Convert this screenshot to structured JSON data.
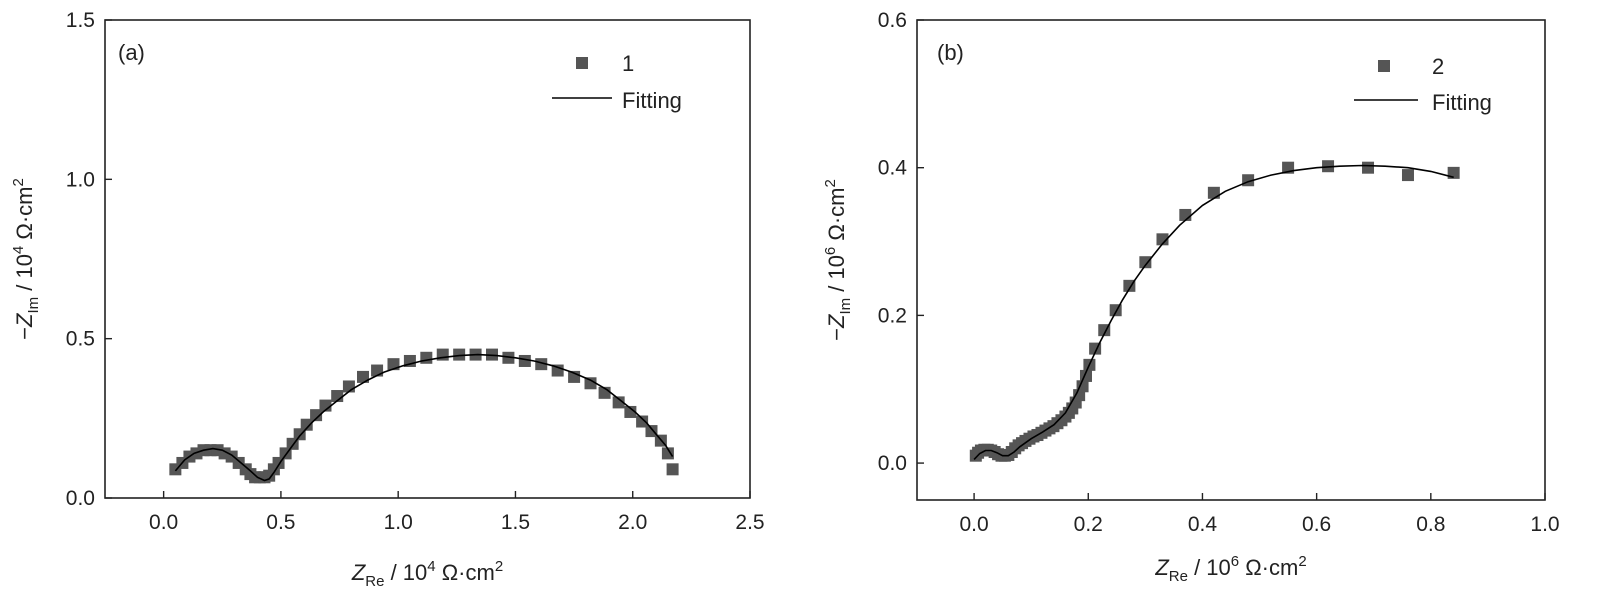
{
  "chart_data": [
    {
      "type": "scatter",
      "panel_label": "(a)",
      "xlabel": {
        "symbol": "Z",
        "subscript": "Re",
        "unit_prefix": " / 10",
        "exponent": "4",
        "unit": " Ω·cm",
        "unit_exponent": "2"
      },
      "ylabel": {
        "prefix": "−",
        "symbol": "Z",
        "subscript": "Im",
        "unit_prefix": " / 10",
        "exponent": "4",
        "unit": " Ω·cm",
        "unit_exponent": "2"
      },
      "xlim": [
        -0.25,
        2.5
      ],
      "ylim": [
        0.0,
        1.5
      ],
      "xticks": [
        0.0,
        0.5,
        1.0,
        1.5,
        2.0,
        2.5
      ],
      "xtick_labels": [
        "0.0",
        "0.5",
        "1.0",
        "1.5",
        "2.0",
        "2.5"
      ],
      "yticks": [
        0.0,
        0.5,
        1.0,
        1.5
      ],
      "ytick_labels": [
        "0.0",
        "0.5",
        "1.0",
        "1.5"
      ],
      "legend_position": "top-right",
      "series": [
        {
          "name": "1",
          "kind": "markers",
          "color": "#555555",
          "x": [
            0.05,
            0.08,
            0.11,
            0.14,
            0.17,
            0.2,
            0.23,
            0.26,
            0.29,
            0.32,
            0.35,
            0.37,
            0.39,
            0.41,
            0.43,
            0.45,
            0.47,
            0.49,
            0.52,
            0.55,
            0.58,
            0.61,
            0.65,
            0.69,
            0.74,
            0.79,
            0.85,
            0.91,
            0.98,
            1.05,
            1.12,
            1.19,
            1.26,
            1.33,
            1.4,
            1.47,
            1.54,
            1.61,
            1.68,
            1.75,
            1.82,
            1.88,
            1.94,
            1.99,
            2.04,
            2.08,
            2.12,
            2.15,
            2.17
          ],
          "y": [
            0.09,
            0.11,
            0.13,
            0.14,
            0.15,
            0.15,
            0.15,
            0.14,
            0.13,
            0.11,
            0.09,
            0.075,
            0.065,
            0.065,
            0.065,
            0.07,
            0.09,
            0.11,
            0.14,
            0.17,
            0.2,
            0.23,
            0.26,
            0.29,
            0.32,
            0.35,
            0.38,
            0.4,
            0.42,
            0.43,
            0.44,
            0.45,
            0.45,
            0.45,
            0.45,
            0.44,
            0.43,
            0.42,
            0.4,
            0.38,
            0.36,
            0.33,
            0.3,
            0.27,
            0.24,
            0.21,
            0.18,
            0.14,
            0.09
          ]
        },
        {
          "name": "Fitting",
          "kind": "line",
          "color": "#000000",
          "x": [
            0.05,
            0.09,
            0.13,
            0.17,
            0.21,
            0.25,
            0.29,
            0.33,
            0.37,
            0.4,
            0.43,
            0.45,
            0.47,
            0.5,
            0.54,
            0.58,
            0.63,
            0.68,
            0.74,
            0.8,
            0.87,
            0.94,
            1.02,
            1.1,
            1.18,
            1.26,
            1.34,
            1.42,
            1.5,
            1.58,
            1.66,
            1.74,
            1.82,
            1.89,
            1.95,
            2.01,
            2.06,
            2.1,
            2.14,
            2.17
          ],
          "y": [
            0.085,
            0.12,
            0.14,
            0.15,
            0.155,
            0.15,
            0.135,
            0.11,
            0.085,
            0.065,
            0.055,
            0.06,
            0.08,
            0.115,
            0.155,
            0.195,
            0.235,
            0.27,
            0.305,
            0.34,
            0.37,
            0.395,
            0.415,
            0.43,
            0.44,
            0.447,
            0.45,
            0.447,
            0.44,
            0.43,
            0.415,
            0.395,
            0.37,
            0.34,
            0.305,
            0.27,
            0.235,
            0.2,
            0.165,
            0.13
          ]
        }
      ]
    },
    {
      "type": "scatter",
      "panel_label": "(b)",
      "xlabel": {
        "symbol": "Z",
        "subscript": "Re",
        "unit_prefix": " / 10",
        "exponent": "6",
        "unit": " Ω·cm",
        "unit_exponent": "2"
      },
      "ylabel": {
        "prefix": "−",
        "symbol": "Z",
        "subscript": "Im",
        "unit_prefix": " / 10",
        "exponent": "6",
        "unit": " Ω·cm",
        "unit_exponent": "2"
      },
      "xlim": [
        -0.1,
        1.0
      ],
      "ylim": [
        -0.05,
        0.6
      ],
      "xticks": [
        0.0,
        0.2,
        0.4,
        0.6,
        0.8,
        1.0
      ],
      "xtick_labels": [
        "0.0",
        "0.2",
        "0.4",
        "0.6",
        "0.8",
        "1.0"
      ],
      "yticks": [
        0.0,
        0.2,
        0.4,
        0.6
      ],
      "ytick_labels": [
        "0.0",
        "0.2",
        "0.4",
        "0.6"
      ],
      "legend_position": "top-right",
      "series": [
        {
          "name": "2",
          "kind": "markers",
          "color": "#555555",
          "x": [
            0.003,
            0.007,
            0.012,
            0.018,
            0.024,
            0.03,
            0.036,
            0.042,
            0.048,
            0.054,
            0.06,
            0.066,
            0.072,
            0.078,
            0.084,
            0.09,
            0.097,
            0.104,
            0.111,
            0.118,
            0.125,
            0.132,
            0.139,
            0.146,
            0.153,
            0.16,
            0.166,
            0.172,
            0.178,
            0.184,
            0.19,
            0.196,
            0.202,
            0.212,
            0.228,
            0.248,
            0.272,
            0.3,
            0.33,
            0.37,
            0.42,
            0.48,
            0.55,
            0.62,
            0.69,
            0.76,
            0.84
          ],
          "y": [
            0.01,
            0.014,
            0.017,
            0.018,
            0.018,
            0.017,
            0.015,
            0.012,
            0.01,
            0.01,
            0.011,
            0.015,
            0.02,
            0.024,
            0.027,
            0.03,
            0.033,
            0.036,
            0.038,
            0.041,
            0.044,
            0.047,
            0.05,
            0.054,
            0.058,
            0.063,
            0.068,
            0.074,
            0.082,
            0.092,
            0.104,
            0.118,
            0.133,
            0.155,
            0.18,
            0.207,
            0.24,
            0.272,
            0.303,
            0.336,
            0.366,
            0.383,
            0.4,
            0.402,
            0.4,
            0.39,
            0.393
          ]
        },
        {
          "name": "Fitting",
          "kind": "line",
          "color": "#000000",
          "x": [
            0.0,
            0.01,
            0.02,
            0.03,
            0.04,
            0.05,
            0.06,
            0.07,
            0.08,
            0.1,
            0.12,
            0.14,
            0.16,
            0.18,
            0.2,
            0.22,
            0.24,
            0.26,
            0.28,
            0.3,
            0.33,
            0.36,
            0.4,
            0.44,
            0.48,
            0.52,
            0.56,
            0.6,
            0.64,
            0.68,
            0.72,
            0.76,
            0.8,
            0.84
          ],
          "y": [
            0.005,
            0.013,
            0.017,
            0.017,
            0.014,
            0.01,
            0.01,
            0.015,
            0.022,
            0.033,
            0.042,
            0.052,
            0.068,
            0.095,
            0.13,
            0.163,
            0.193,
            0.221,
            0.246,
            0.268,
            0.297,
            0.322,
            0.349,
            0.368,
            0.381,
            0.39,
            0.396,
            0.4,
            0.402,
            0.403,
            0.402,
            0.4,
            0.395,
            0.387
          ]
        }
      ]
    }
  ]
}
